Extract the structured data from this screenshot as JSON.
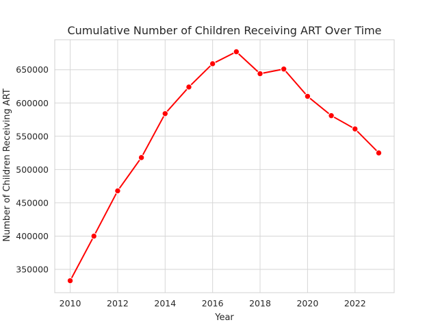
{
  "chart_data": {
    "type": "line",
    "title": "Cumulative Number of Children Receiving ART Over Time",
    "xlabel": "Year",
    "ylabel": "Number of Children Receiving ART",
    "x": [
      2010,
      2011,
      2012,
      2013,
      2014,
      2015,
      2016,
      2017,
      2018,
      2019,
      2020,
      2021,
      2022,
      2023
    ],
    "series": [
      {
        "name": "",
        "values": [
          333000,
          400000,
          468000,
          518000,
          584000,
          624000,
          659000,
          677000,
          644000,
          651000,
          610000,
          581000,
          561000,
          525000
        ],
        "color": "#ff0000"
      }
    ],
    "x_ticks": [
      "2010",
      "2012",
      "2014",
      "2016",
      "2018",
      "2020",
      "2022"
    ],
    "y_ticks": [
      "350000",
      "400000",
      "450000",
      "500000",
      "550000",
      "600000",
      "650000"
    ],
    "xlim": [
      2009.35,
      2023.65
    ],
    "ylim": [
      315000,
      695000
    ],
    "grid": true,
    "legend": "none"
  }
}
